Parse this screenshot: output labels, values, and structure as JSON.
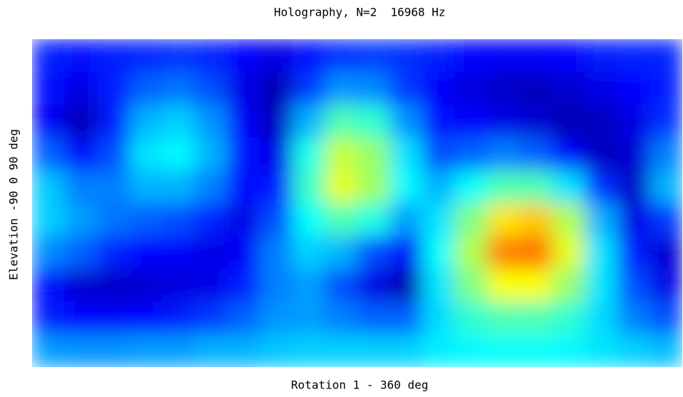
{
  "chart_data": {
    "type": "heatmap",
    "title": "Holography, N=2  16968 Hz",
    "x_label": "Rotation 1 - 360 deg",
    "y_label": "Elevation -90 0 90 deg",
    "values": [
      [
        0.15,
        0.14,
        0.15,
        0.16,
        0.17,
        0.16,
        0.13,
        0.1,
        0.14,
        0.17,
        0.18,
        0.17,
        0.15,
        0.13,
        0.12,
        0.12,
        0.13,
        0.15,
        0.16,
        0.16
      ],
      [
        0.14,
        0.1,
        0.15,
        0.22,
        0.24,
        0.2,
        0.1,
        0.05,
        0.18,
        0.27,
        0.26,
        0.18,
        0.12,
        0.09,
        0.07,
        0.06,
        0.08,
        0.1,
        0.13,
        0.15
      ],
      [
        0.12,
        0.05,
        0.15,
        0.3,
        0.33,
        0.27,
        0.12,
        0.06,
        0.3,
        0.45,
        0.42,
        0.27,
        0.14,
        0.12,
        0.1,
        0.08,
        0.05,
        0.06,
        0.1,
        0.17
      ],
      [
        0.22,
        0.13,
        0.2,
        0.35,
        0.37,
        0.3,
        0.14,
        0.1,
        0.4,
        0.57,
        0.52,
        0.35,
        0.2,
        0.22,
        0.25,
        0.22,
        0.12,
        0.06,
        0.08,
        0.25
      ],
      [
        0.32,
        0.25,
        0.25,
        0.3,
        0.3,
        0.25,
        0.13,
        0.15,
        0.43,
        0.6,
        0.53,
        0.37,
        0.3,
        0.38,
        0.45,
        0.45,
        0.35,
        0.17,
        0.07,
        0.3
      ],
      [
        0.33,
        0.28,
        0.24,
        0.22,
        0.2,
        0.16,
        0.1,
        0.2,
        0.38,
        0.45,
        0.4,
        0.28,
        0.35,
        0.5,
        0.65,
        0.68,
        0.55,
        0.3,
        0.1,
        0.18
      ],
      [
        0.26,
        0.22,
        0.16,
        0.13,
        0.12,
        0.1,
        0.12,
        0.25,
        0.33,
        0.3,
        0.2,
        0.12,
        0.38,
        0.55,
        0.75,
        0.76,
        0.6,
        0.35,
        0.15,
        0.08
      ],
      [
        0.14,
        0.08,
        0.07,
        0.08,
        0.09,
        0.1,
        0.15,
        0.25,
        0.28,
        0.2,
        0.1,
        0.05,
        0.35,
        0.5,
        0.62,
        0.62,
        0.52,
        0.35,
        0.2,
        0.1
      ],
      [
        0.15,
        0.13,
        0.12,
        0.13,
        0.15,
        0.18,
        0.22,
        0.27,
        0.28,
        0.25,
        0.22,
        0.22,
        0.34,
        0.42,
        0.45,
        0.45,
        0.42,
        0.34,
        0.25,
        0.2
      ],
      [
        0.28,
        0.27,
        0.27,
        0.28,
        0.28,
        0.3,
        0.3,
        0.32,
        0.33,
        0.33,
        0.33,
        0.33,
        0.36,
        0.37,
        0.38,
        0.38,
        0.37,
        0.35,
        0.33,
        0.31
      ]
    ]
  }
}
